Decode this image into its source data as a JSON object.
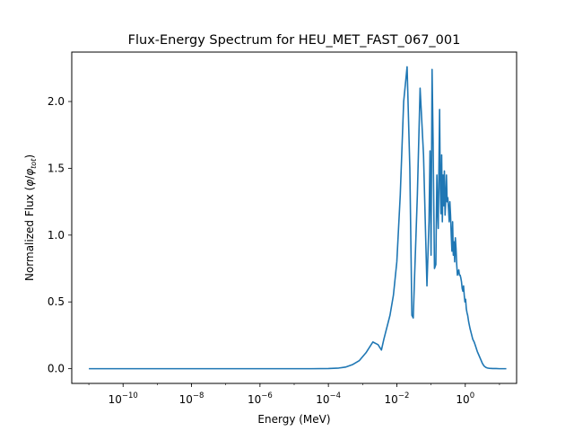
{
  "chart_data": {
    "type": "line",
    "title": "Flux-Energy Spectrum for HEU_MET_FAST_067_001",
    "xlabel": "Energy (MeV)",
    "ylabel_prefix": "Normalized Flux (",
    "ylabel_phi": "φ",
    "ylabel_sub": "tot",
    "ylabel_suffix": ")",
    "xscale": "log",
    "xlim_exp": [
      -11.5,
      1.5
    ],
    "ylim": [
      -0.11,
      2.37
    ],
    "x_ticks": [
      {
        "base": "10",
        "exp": "−10",
        "pos": -10
      },
      {
        "base": "10",
        "exp": "−8",
        "pos": -8
      },
      {
        "base": "10",
        "exp": "−6",
        "pos": -6
      },
      {
        "base": "10",
        "exp": "−4",
        "pos": -4
      },
      {
        "base": "10",
        "exp": "−2",
        "pos": -2
      },
      {
        "base": "10",
        "exp": "0",
        "pos": 0
      }
    ],
    "y_ticks": [
      {
        "label": "0.0",
        "value": 0.0
      },
      {
        "label": "0.5",
        "value": 0.5
      },
      {
        "label": "1.0",
        "value": 1.0
      },
      {
        "label": "1.5",
        "value": 1.5
      },
      {
        "label": "2.0",
        "value": 2.0
      }
    ],
    "grid": false,
    "color": "#1f77b4",
    "series": [
      {
        "log10_energy": [
          -11,
          -10,
          -9,
          -8,
          -7,
          -6,
          -5,
          -4.5,
          -4,
          -3.7,
          -3.5,
          -3.3,
          -3.1,
          -2.9,
          -2.7,
          -2.55,
          -2.45,
          -2.38,
          -2.35,
          -2.32,
          -2.28,
          -2.2,
          -2.1,
          -2.0,
          -1.9,
          -1.8,
          -1.7,
          -1.62,
          -1.56,
          -1.52,
          -1.48,
          -1.44,
          -1.4,
          -1.32,
          -1.22,
          -1.12,
          -1.06,
          -1.03,
          -1.0,
          -0.97,
          -0.94,
          -0.9,
          -0.86,
          -0.83,
          -0.81,
          -0.79,
          -0.77,
          -0.75,
          -0.73,
          -0.71,
          -0.69,
          -0.67,
          -0.65,
          -0.63,
          -0.61,
          -0.59,
          -0.57,
          -0.55,
          -0.53,
          -0.51,
          -0.49,
          -0.47,
          -0.45,
          -0.43,
          -0.41,
          -0.39,
          -0.37,
          -0.35,
          -0.33,
          -0.31,
          -0.29,
          -0.27,
          -0.25,
          -0.23,
          -0.21,
          -0.19,
          -0.17,
          -0.15,
          -0.13,
          -0.11,
          -0.09,
          -0.07,
          -0.05,
          -0.03,
          -0.01,
          0.01,
          0.03,
          0.05,
          0.07,
          0.1,
          0.14,
          0.18,
          0.22,
          0.26,
          0.3,
          0.35,
          0.4,
          0.45,
          0.5,
          0.55,
          0.6,
          0.65,
          0.7,
          0.75,
          0.8,
          0.85,
          0.9,
          1.0,
          1.2
        ],
        "flux": [
          0.0,
          0.0,
          0.0,
          0.0,
          0.0,
          0.0,
          0.0,
          0.0,
          0.001,
          0.005,
          0.012,
          0.03,
          0.06,
          0.12,
          0.2,
          0.18,
          0.14,
          0.22,
          0.25,
          0.28,
          0.32,
          0.4,
          0.55,
          0.8,
          1.3,
          2.0,
          2.26,
          1.5,
          0.4,
          0.38,
          0.7,
          1.0,
          1.3,
          2.1,
          1.6,
          0.62,
          1.1,
          1.63,
          0.85,
          2.24,
          1.7,
          0.75,
          0.78,
          1.45,
          1.2,
          1.05,
          1.5,
          1.94,
          1.35,
          1.16,
          1.6,
          1.1,
          1.45,
          1.22,
          1.48,
          1.15,
          1.26,
          1.45,
          1.25,
          1.28,
          1.2,
          1.1,
          1.25,
          1.15,
          1.0,
          0.88,
          1.1,
          0.85,
          0.95,
          0.8,
          0.98,
          0.9,
          0.78,
          0.7,
          0.72,
          0.74,
          0.7,
          0.7,
          0.68,
          0.65,
          0.6,
          0.58,
          0.62,
          0.55,
          0.5,
          0.52,
          0.45,
          0.42,
          0.4,
          0.35,
          0.3,
          0.26,
          0.22,
          0.2,
          0.17,
          0.13,
          0.1,
          0.07,
          0.04,
          0.02,
          0.01,
          0.005,
          0.003,
          0.002,
          0.001,
          0.001,
          0.001,
          0.0,
          0.0
        ]
      }
    ]
  }
}
